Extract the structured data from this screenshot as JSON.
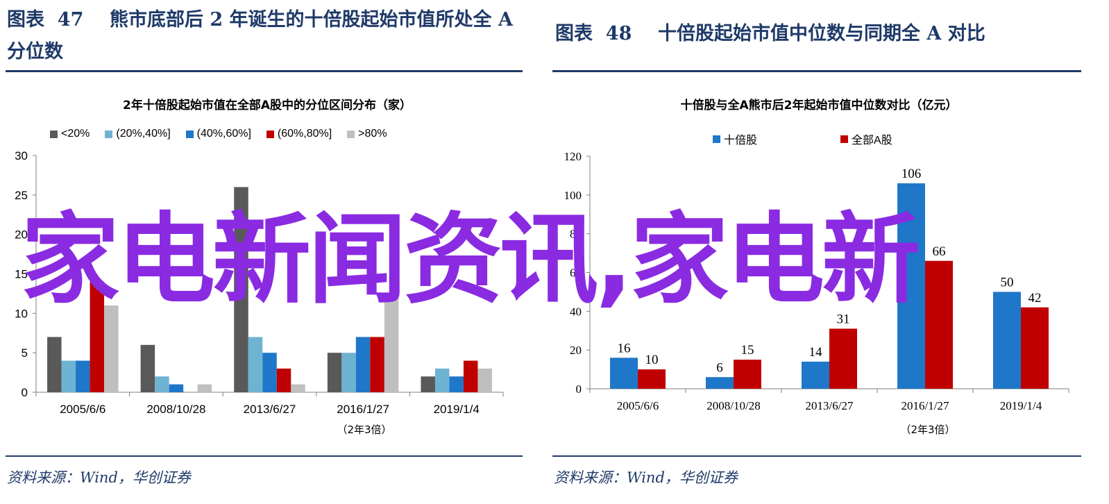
{
  "left": {
    "figure_title": "图表  47    熊市底部后 2 年诞生的十倍股起始市值所处全 A 分位数",
    "source": "资料来源：Wind，华创证券",
    "sub_note": "（2年3倍）"
  },
  "right": {
    "figure_title": "图表  48    十倍股起始市值中位数与同期全 A 对比",
    "source": "资料来源：Wind，华创证券",
    "sub_note": "（2年3倍）"
  },
  "watermark": "家电新闻资讯,家电新",
  "chart_data": [
    {
      "type": "bar",
      "title": "2年十倍股起始市值在全部A股中的分位区间分布（家）",
      "categories": [
        "2005/6/6",
        "2008/10/28",
        "2013/6/27",
        "2016/1/27",
        "2019/1/4"
      ],
      "series": [
        {
          "name": "<20%",
          "color": "#595959",
          "values": [
            7,
            6,
            26,
            5,
            2
          ]
        },
        {
          "name": "(20%,40%]",
          "color": "#6fb3d2",
          "values": [
            4,
            2,
            7,
            5,
            3
          ]
        },
        {
          "name": "(40%,60%]",
          "color": "#1f77c9",
          "values": [
            4,
            1,
            5,
            7,
            2
          ]
        },
        {
          "name": "(60%,80%]",
          "color": "#c00000",
          "values": [
            14,
            0,
            3,
            7,
            4
          ]
        },
        {
          "name": ">80%",
          "color": "#bfbfbf",
          "values": [
            11,
            1,
            1,
            12,
            3
          ]
        }
      ],
      "ylim": [
        0,
        30
      ],
      "yticks": [
        0,
        5,
        10,
        15,
        20,
        25,
        30
      ],
      "grid": false,
      "legend": "top"
    },
    {
      "type": "bar",
      "title": "十倍股与全A熊市后2年起始市值中位数对比（亿元）",
      "categories": [
        "2005/6/6",
        "2008/10/28",
        "2013/6/27",
        "2016/1/27",
        "2019/1/4"
      ],
      "series": [
        {
          "name": "十倍股",
          "color": "#1f77c9",
          "values": [
            16,
            6,
            14,
            106,
            50
          ]
        },
        {
          "name": "全部A股",
          "color": "#c00000",
          "values": [
            10,
            15,
            31,
            66,
            42
          ]
        }
      ],
      "data_labels": true,
      "ylim": [
        0,
        120
      ],
      "yticks": [
        0,
        20,
        40,
        60,
        80,
        100,
        120
      ],
      "grid": false,
      "legend": "top"
    }
  ]
}
